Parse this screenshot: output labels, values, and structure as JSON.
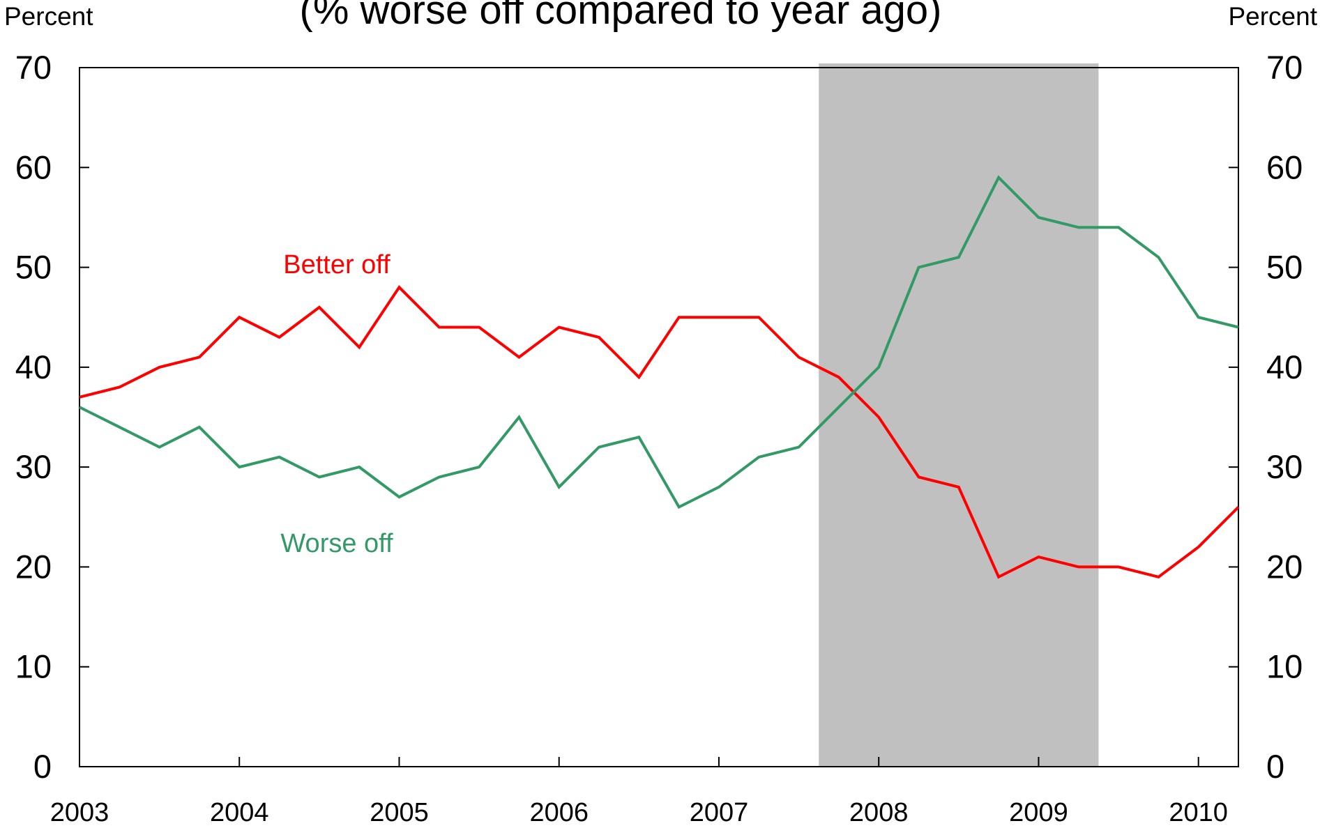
{
  "chart_data": {
    "type": "line",
    "title": "(% worse off compared to year ago)",
    "ylabel_left": "Percent",
    "ylabel_right": "Percent",
    "ylim": [
      0,
      70
    ],
    "yticks": [
      0,
      10,
      20,
      30,
      40,
      50,
      60,
      70
    ],
    "xlim": [
      2003,
      2010.25
    ],
    "xticks": [
      "2003",
      "2004",
      "2005",
      "2006",
      "2007",
      "2008",
      "2009",
      "2010"
    ],
    "grid": false,
    "shaded_region": {
      "start": 2007.625,
      "end": 2009.375,
      "color": "#c0c0c0"
    },
    "x": [
      2003,
      2003.25,
      2003.5,
      2003.75,
      2004,
      2004.25,
      2004.5,
      2004.75,
      2005,
      2005.25,
      2005.5,
      2005.75,
      2006,
      2006.25,
      2006.5,
      2006.75,
      2007,
      2007.25,
      2007.5,
      2007.75,
      2008,
      2008.25,
      2008.5,
      2008.75,
      2009,
      2009.25,
      2009.5,
      2009.75,
      2010,
      2010.25
    ],
    "series": [
      {
        "name": "Better off",
        "color": "#ff0000",
        "values": [
          37,
          38,
          40,
          41,
          45,
          43,
          46,
          42,
          48,
          44,
          44,
          41,
          44,
          43,
          39,
          45,
          45,
          45,
          41,
          39,
          35,
          29,
          28,
          19,
          21,
          20,
          20,
          19,
          22,
          26
        ]
      },
      {
        "name": "Worse off",
        "color": "#339966",
        "values": [
          36,
          34,
          32,
          34,
          30,
          31,
          29,
          30,
          27,
          29,
          30,
          35,
          28,
          32,
          33,
          26,
          28,
          31,
          32,
          36,
          40,
          50,
          51,
          59,
          55,
          54,
          54,
          51,
          45,
          44
        ]
      }
    ]
  }
}
